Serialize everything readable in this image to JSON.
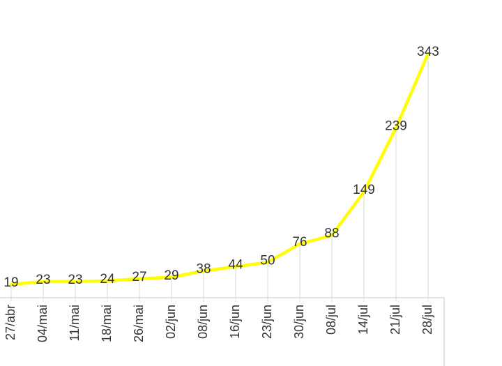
{
  "chart_data": {
    "type": "line",
    "categories": [
      "27/abr",
      "04/mai",
      "11/mai",
      "18/mai",
      "26/mai",
      "02/jun",
      "08/jun",
      "16/jun",
      "23/jun",
      "30/jun",
      "08/jul",
      "14/jul",
      "21/jul",
      "28/jul"
    ],
    "values": [
      19,
      23,
      23,
      24,
      27,
      29,
      38,
      44,
      50,
      76,
      88,
      149,
      239,
      343
    ],
    "data_labels": [
      "19",
      "23",
      "23",
      "24",
      "27",
      "29",
      "38",
      "44",
      "50",
      "76",
      "88",
      "149",
      "239",
      "343"
    ],
    "line_color": "#ffff00",
    "drop_line_color": "#d9d9d9",
    "axis_color": "#d9d9d9",
    "grid": false,
    "legend": "none",
    "title": "",
    "xlabel": "",
    "ylabel": ""
  }
}
